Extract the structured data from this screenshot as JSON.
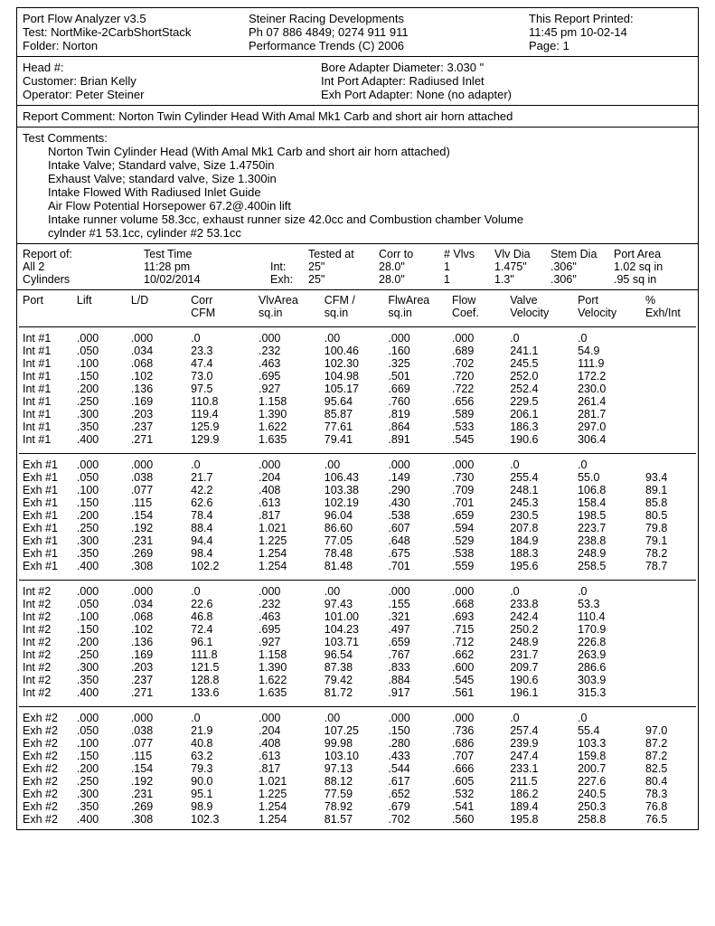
{
  "header": {
    "appTitle": "Port Flow Analyzer v3.5",
    "test": "Test: NortMike-2CarbShortStack",
    "folder": "Folder: Norton",
    "company": "Steiner Racing Developments",
    "phone": "Ph 07 886 4849; 0274 911 911",
    "copyright": "Performance Trends (C) 2006",
    "printedLabel": "This Report Printed:",
    "printedTime": "11:45 pm 10-02-14",
    "page": "Page: 1"
  },
  "info": {
    "head": "Head #:",
    "customer": "Customer: Brian Kelly",
    "operator": "Operator: Peter Steiner",
    "bore": "Bore Adapter Diameter: 3.030 \"",
    "intPort": "Int Port Adapter: Radiused Inlet",
    "exhPort": "Exh Port Adapter: None (no adapter)"
  },
  "reportComment": "Report Comment:  Norton Twin Cylinder Head With Amal Mk1 Carb and short air horn attached",
  "testComments": {
    "label": "Test Comments:",
    "lines": [
      "Norton Twin Cylinder Head (With Amal Mk1 Carb and short air horn attached)",
      "Intake Valve; Standard valve, Size 1.4750in",
      "Exhaust Valve; standard valve, Size 1.300in",
      "Intake Flowed With Radiused Inlet Guide",
      "Air Flow Potential  Horsepower 67.2@.400in lift",
      "Intake runner volume 58.3cc, exhaust runner size 42.0cc and Combustion chamber Volume",
      "cylnder #1 53.1cc, cylinder #2 53.1cc"
    ]
  },
  "summary": {
    "c1": "Report of:\nAll 2\nCylinders",
    "c2": "Test Time\n11:28 pm\n10/02/2014",
    "c3": "\nInt:\nExh:",
    "c4": "Tested at\n25\"\n25\"",
    "c5": "Corr to\n28.0\"\n28.0\"",
    "c6": "# Vlvs\n1\n1",
    "c7": "Vlv Dia\n1.475\"\n1.3\"",
    "c8": "Stem Dia\n.306\"\n.306\"",
    "c9": "Port Area\n1.02 sq in\n.95 sq in"
  },
  "columns": [
    "Port",
    "Lift",
    "L/D",
    "Corr\nCFM",
    "VlvArea\nsq.in",
    "CFM /\nsq.in",
    "FlwArea\nsq.in",
    "Flow\nCoef.",
    "Valve\nVelocity",
    "Port\nVelocity",
    "%\nExh/Int"
  ],
  "groups": [
    {
      "rows": [
        [
          "Int #1",
          ".000",
          ".000",
          ".0",
          ".000",
          ".00",
          ".000",
          ".000",
          ".0",
          ".0",
          ""
        ],
        [
          "Int #1",
          ".050",
          ".034",
          "23.3",
          ".232",
          "100.46",
          ".160",
          ".689",
          "241.1",
          "54.9",
          ""
        ],
        [
          "Int #1",
          ".100",
          ".068",
          "47.4",
          ".463",
          "102.30",
          ".325",
          ".702",
          "245.5",
          "111.9",
          ""
        ],
        [
          "Int #1",
          ".150",
          ".102",
          "73.0",
          ".695",
          "104.98",
          ".501",
          ".720",
          "252.0",
          "172.2",
          ""
        ],
        [
          "Int #1",
          ".200",
          ".136",
          "97.5",
          ".927",
          "105.17",
          ".669",
          ".722",
          "252.4",
          "230.0",
          ""
        ],
        [
          "Int #1",
          ".250",
          ".169",
          "110.8",
          "1.158",
          "95.64",
          ".760",
          ".656",
          "229.5",
          "261.4",
          ""
        ],
        [
          "Int #1",
          ".300",
          ".203",
          "119.4",
          "1.390",
          "85.87",
          ".819",
          ".589",
          "206.1",
          "281.7",
          ""
        ],
        [
          "Int #1",
          ".350",
          ".237",
          "125.9",
          "1.622",
          "77.61",
          ".864",
          ".533",
          "186.3",
          "297.0",
          ""
        ],
        [
          "Int #1",
          ".400",
          ".271",
          "129.9",
          "1.635",
          "79.41",
          ".891",
          ".545",
          "190.6",
          "306.4",
          ""
        ]
      ]
    },
    {
      "rows": [
        [
          "Exh #1",
          ".000",
          ".000",
          ".0",
          ".000",
          ".00",
          ".000",
          ".000",
          ".0",
          ".0",
          ""
        ],
        [
          "Exh #1",
          ".050",
          ".038",
          "21.7",
          ".204",
          "106.43",
          ".149",
          ".730",
          "255.4",
          "55.0",
          "93.4"
        ],
        [
          "Exh #1",
          ".100",
          ".077",
          "42.2",
          ".408",
          "103.38",
          ".290",
          ".709",
          "248.1",
          "106.8",
          "89.1"
        ],
        [
          "Exh #1",
          ".150",
          ".115",
          "62.6",
          ".613",
          "102.19",
          ".430",
          ".701",
          "245.3",
          "158.4",
          "85.8"
        ],
        [
          "Exh #1",
          ".200",
          ".154",
          "78.4",
          ".817",
          "96.04",
          ".538",
          ".659",
          "230.5",
          "198.5",
          "80.5"
        ],
        [
          "Exh #1",
          ".250",
          ".192",
          "88.4",
          "1.021",
          "86.60",
          ".607",
          ".594",
          "207.8",
          "223.7",
          "79.8"
        ],
        [
          "Exh #1",
          ".300",
          ".231",
          "94.4",
          "1.225",
          "77.05",
          ".648",
          ".529",
          "184.9",
          "238.8",
          "79.1"
        ],
        [
          "Exh #1",
          ".350",
          ".269",
          "98.4",
          "1.254",
          "78.48",
          ".675",
          ".538",
          "188.3",
          "248.9",
          "78.2"
        ],
        [
          "Exh #1",
          ".400",
          ".308",
          "102.2",
          "1.254",
          "81.48",
          ".701",
          ".559",
          "195.6",
          "258.5",
          "78.7"
        ]
      ]
    },
    {
      "rows": [
        [
          "Int #2",
          ".000",
          ".000",
          ".0",
          ".000",
          ".00",
          ".000",
          ".000",
          ".0",
          ".0",
          ""
        ],
        [
          "Int #2",
          ".050",
          ".034",
          "22.6",
          ".232",
          "97.43",
          ".155",
          ".668",
          "233.8",
          "53.3",
          ""
        ],
        [
          "Int #2",
          ".100",
          ".068",
          "46.8",
          ".463",
          "101.00",
          ".321",
          ".693",
          "242.4",
          "110.4",
          ""
        ],
        [
          "Int #2",
          ".150",
          ".102",
          "72.4",
          ".695",
          "104.23",
          ".497",
          ".715",
          "250.2",
          "170.9",
          ""
        ],
        [
          "Int #2",
          ".200",
          ".136",
          "96.1",
          ".927",
          "103.71",
          ".659",
          ".712",
          "248.9",
          "226.8",
          ""
        ],
        [
          "Int #2",
          ".250",
          ".169",
          "111.8",
          "1.158",
          "96.54",
          ".767",
          ".662",
          "231.7",
          "263.9",
          ""
        ],
        [
          "Int #2",
          ".300",
          ".203",
          "121.5",
          "1.390",
          "87.38",
          ".833",
          ".600",
          "209.7",
          "286.6",
          ""
        ],
        [
          "Int #2",
          ".350",
          ".237",
          "128.8",
          "1.622",
          "79.42",
          ".884",
          ".545",
          "190.6",
          "303.9",
          ""
        ],
        [
          "Int #2",
          ".400",
          ".271",
          "133.6",
          "1.635",
          "81.72",
          ".917",
          ".561",
          "196.1",
          "315.3",
          ""
        ]
      ]
    },
    {
      "rows": [
        [
          "Exh #2",
          ".000",
          ".000",
          ".0",
          ".000",
          ".00",
          ".000",
          ".000",
          ".0",
          ".0",
          ""
        ],
        [
          "Exh #2",
          ".050",
          ".038",
          "21.9",
          ".204",
          "107.25",
          ".150",
          ".736",
          "257.4",
          "55.4",
          "97.0"
        ],
        [
          "Exh #2",
          ".100",
          ".077",
          "40.8",
          ".408",
          "99.98",
          ".280",
          ".686",
          "239.9",
          "103.3",
          "87.2"
        ],
        [
          "Exh #2",
          ".150",
          ".115",
          "63.2",
          ".613",
          "103.10",
          ".433",
          ".707",
          "247.4",
          "159.8",
          "87.2"
        ],
        [
          "Exh #2",
          ".200",
          ".154",
          "79.3",
          ".817",
          "97.13",
          ".544",
          ".666",
          "233.1",
          "200.7",
          "82.5"
        ],
        [
          "Exh #2",
          ".250",
          ".192",
          "90.0",
          "1.021",
          "88.12",
          ".617",
          ".605",
          "211.5",
          "227.6",
          "80.4"
        ],
        [
          "Exh #2",
          ".300",
          ".231",
          "95.1",
          "1.225",
          "77.59",
          ".652",
          ".532",
          "186.2",
          "240.5",
          "78.3"
        ],
        [
          "Exh #2",
          ".350",
          ".269",
          "98.9",
          "1.254",
          "78.92",
          ".679",
          ".541",
          "189.4",
          "250.3",
          "76.8"
        ],
        [
          "Exh #2",
          ".400",
          ".308",
          "102.3",
          "1.254",
          "81.57",
          ".702",
          ".560",
          "195.8",
          "258.8",
          "76.5"
        ]
      ]
    }
  ]
}
